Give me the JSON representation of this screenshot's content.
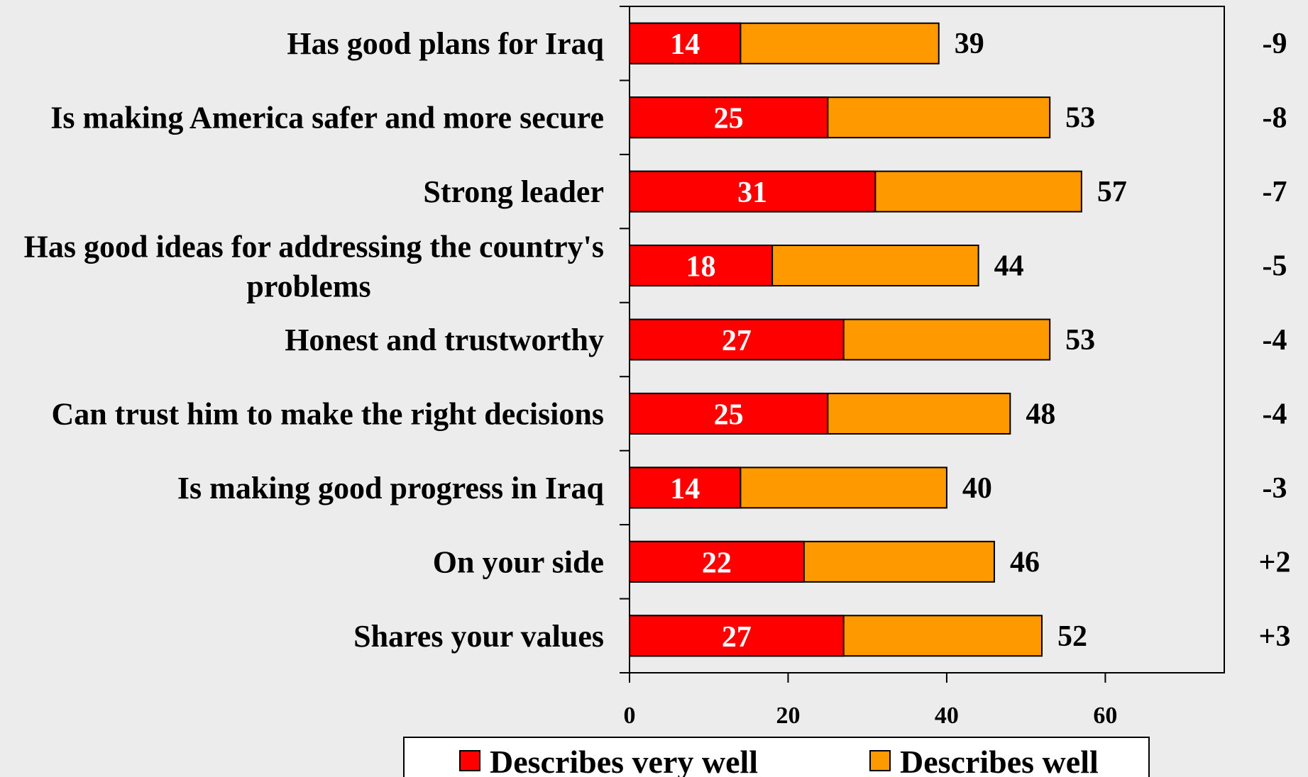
{
  "chart_data": {
    "type": "bar",
    "orientation": "horizontal",
    "stacked": false,
    "categories": [
      "Has good plans for Iraq",
      "Is making America safer and more secure",
      "Strong leader",
      "Has good ideas for addressing the country's problems",
      "Honest and trustworthy",
      "Can trust him to make the right decisions",
      "Is making good progress in Iraq",
      "On your side",
      "Shares your values"
    ],
    "series": [
      {
        "name": "Describes very well",
        "values": [
          14,
          25,
          31,
          18,
          27,
          25,
          14,
          22,
          27
        ]
      },
      {
        "name": "Describes well",
        "values": [
          39,
          53,
          57,
          44,
          53,
          48,
          40,
          46,
          52
        ]
      }
    ],
    "differences": [
      "-9",
      "-8",
      "-7",
      "-5",
      "-4",
      "-4",
      "-3",
      "+2",
      "+3"
    ],
    "xlim": [
      0,
      75
    ],
    "xticks": [
      0,
      20,
      40,
      60
    ],
    "grid": false,
    "legend_position": "bottom",
    "colors": {
      "Describes very well": "#ff0000",
      "Describes well": "#ff9900",
      "outline": "#000000",
      "background": "#ececec"
    }
  }
}
